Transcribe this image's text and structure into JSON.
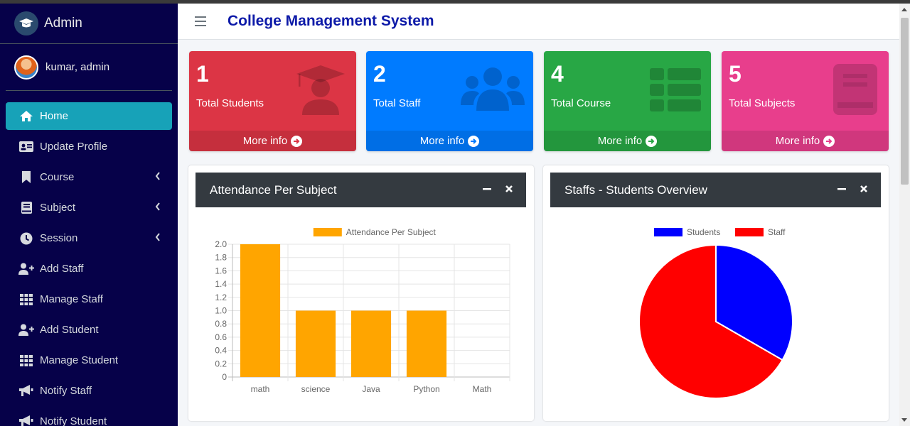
{
  "brand": {
    "title": "Admin"
  },
  "user": {
    "name": "kumar, admin"
  },
  "sidebar": {
    "items": [
      {
        "label": "Home",
        "icon": "home-icon",
        "active": true
      },
      {
        "label": "Update Profile",
        "icon": "id-card-icon"
      },
      {
        "label": "Course",
        "icon": "bookmark-icon",
        "caret": true
      },
      {
        "label": "Subject",
        "icon": "book-icon",
        "caret": true
      },
      {
        "label": "Session",
        "icon": "clock-icon",
        "caret": true
      },
      {
        "label": "Add Staff",
        "icon": "user-plus-icon"
      },
      {
        "label": "Manage Staff",
        "icon": "grid-icon"
      },
      {
        "label": "Add Student",
        "icon": "user-plus-icon"
      },
      {
        "label": "Manage Student",
        "icon": "grid-icon"
      },
      {
        "label": "Notify Staff",
        "icon": "bullhorn-icon"
      },
      {
        "label": "Notify Student",
        "icon": "bullhorn-icon"
      }
    ]
  },
  "header": {
    "title": "College Management System"
  },
  "stats": [
    {
      "value": "1",
      "label": "Total Students",
      "more": "More info",
      "color": "#dc3545",
      "icon": "graduate-icon"
    },
    {
      "value": "2",
      "label": "Total Staff",
      "more": "More info",
      "color": "#007bff",
      "icon": "users-icon"
    },
    {
      "value": "4",
      "label": "Total Course",
      "more": "More info",
      "color": "#28a745",
      "icon": "list-icon"
    },
    {
      "value": "5",
      "label": "Total Subjects",
      "more": "More info",
      "color": "#e83e8c",
      "icon": "book-icon"
    }
  ],
  "cards": [
    {
      "title": "Attendance Per Subject"
    },
    {
      "title": "Staffs - Students Overview"
    }
  ],
  "chart_data": [
    {
      "type": "bar",
      "categories": [
        "math",
        "science",
        "Java",
        "Python",
        "Math"
      ],
      "series": [
        {
          "name": "Attendance Per Subject",
          "values": [
            2,
            1,
            1,
            1,
            0
          ],
          "color": "#ffa500"
        }
      ],
      "ylim": [
        0,
        2.0
      ],
      "yticks": [
        "2.0",
        "1.8",
        "1.6",
        "1.4",
        "1.2",
        "1.0",
        "0.8",
        "0.6",
        "0.4",
        "0.2",
        "0"
      ],
      "grid": true,
      "legend": "top"
    },
    {
      "type": "pie",
      "labels": [
        "Students",
        "Staff"
      ],
      "values": [
        1,
        2
      ],
      "colors": [
        "#0000ff",
        "#ff0000"
      ],
      "legend": "top"
    }
  ]
}
